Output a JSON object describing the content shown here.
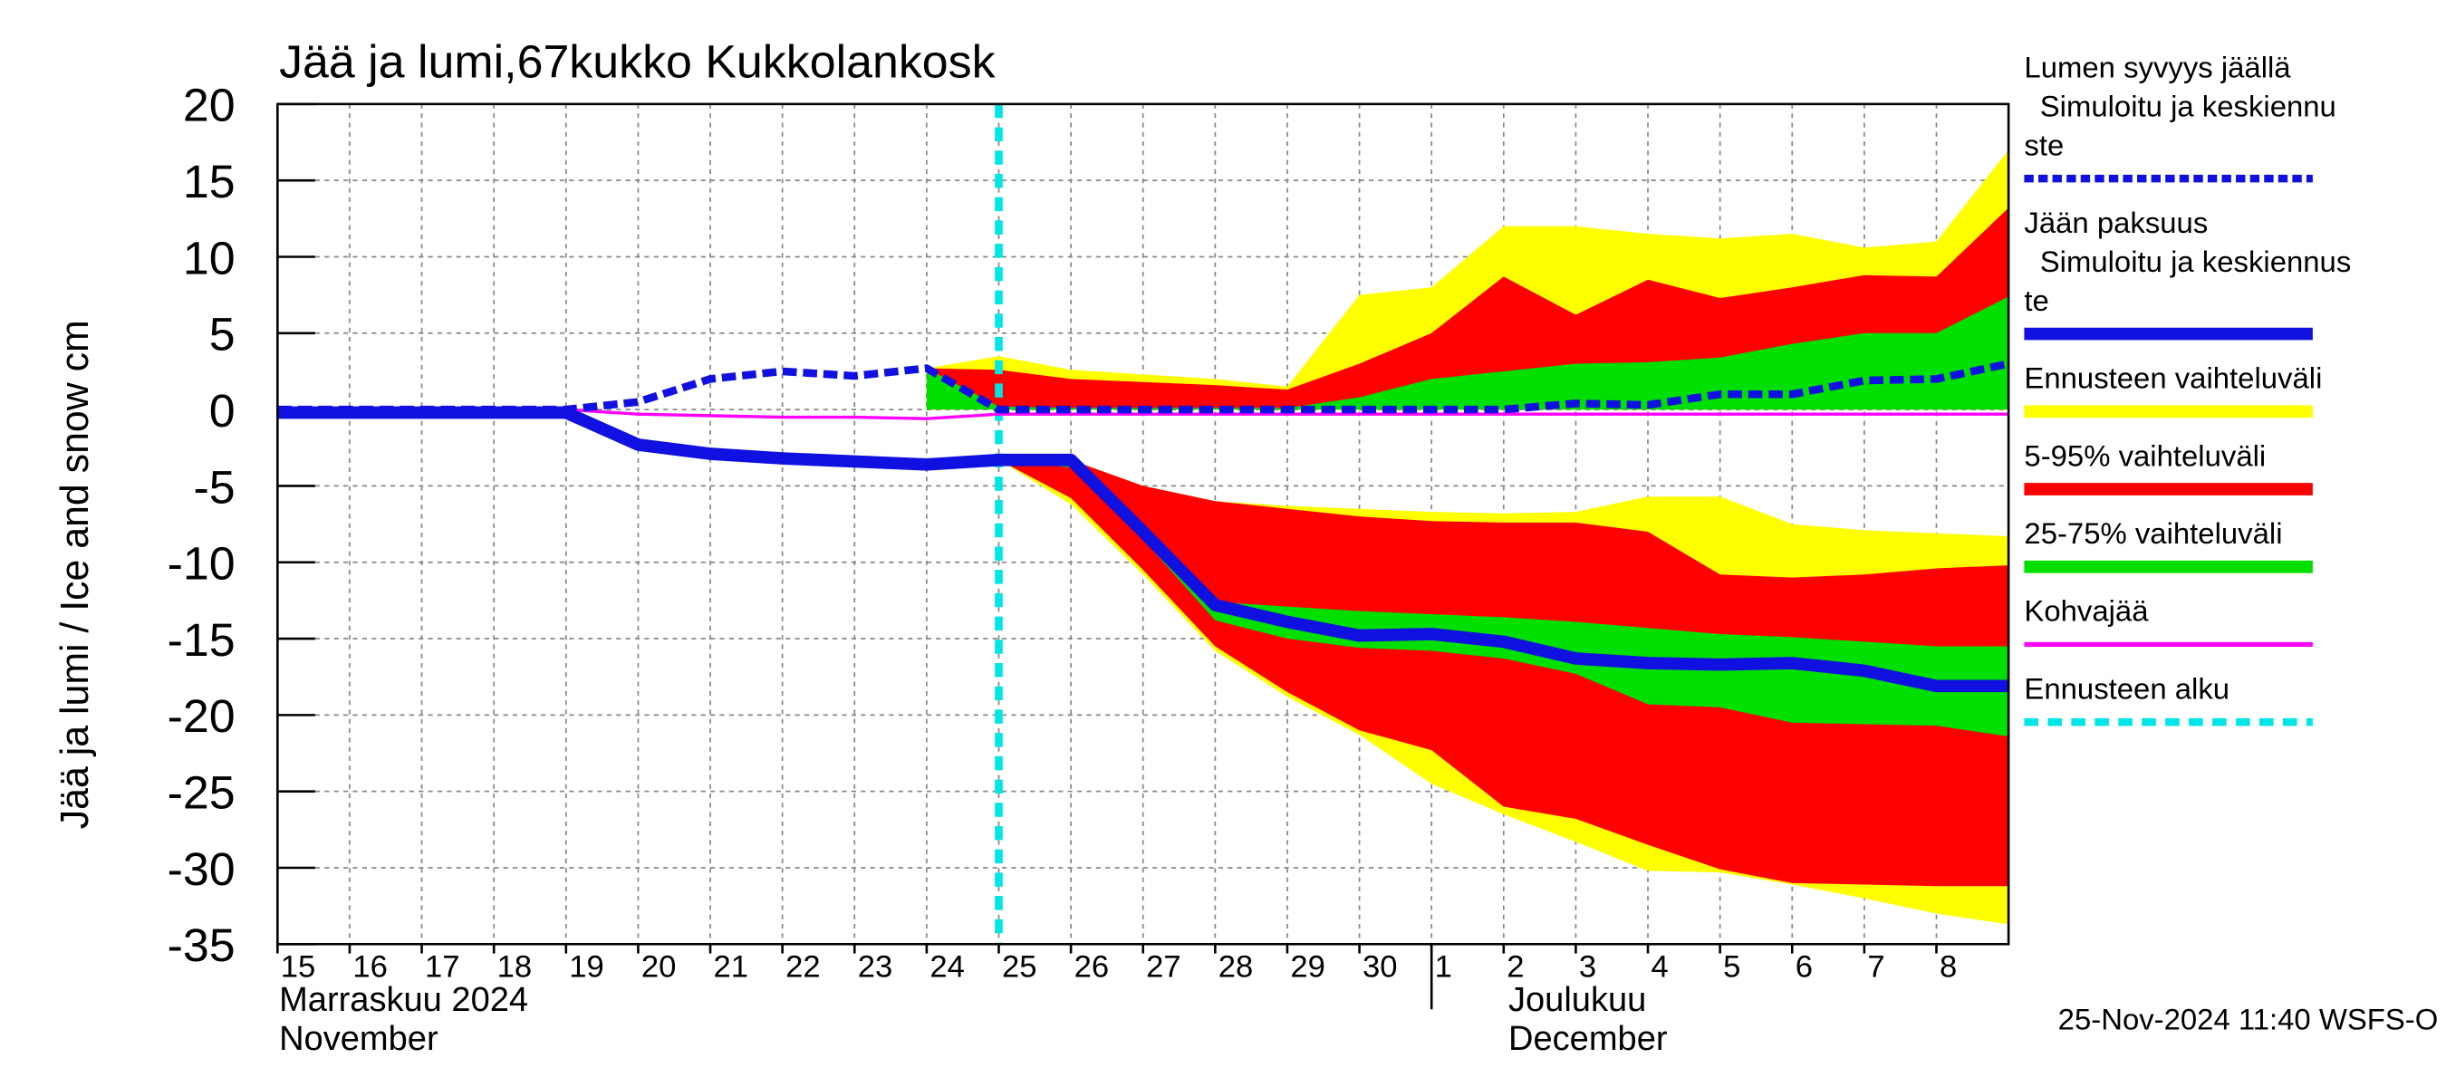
{
  "chart_data": {
    "type": "ice-forecast",
    "title": "Jää ja lumi,67kukko Kukkolankosk",
    "y_label": "Jää ja lumi / Ice and snow    cm",
    "footer": "25-Nov-2024 11:40 WSFS-O",
    "grid": true,
    "ylim": [
      -35,
      20
    ],
    "yticks": [
      20,
      15,
      10,
      5,
      0,
      -5,
      -10,
      -15,
      -20,
      -25,
      -30,
      -35
    ],
    "xlim": [
      "2024-11-15",
      "2024-12-09"
    ],
    "xticks": [
      {
        "value": "2024-11-15",
        "label": "15"
      },
      {
        "value": "2024-11-16",
        "label": "16"
      },
      {
        "value": "2024-11-17",
        "label": "17"
      },
      {
        "value": "2024-11-18",
        "label": "18"
      },
      {
        "value": "2024-11-19",
        "label": "19"
      },
      {
        "value": "2024-11-20",
        "label": "20"
      },
      {
        "value": "2024-11-21",
        "label": "21"
      },
      {
        "value": "2024-11-22",
        "label": "22"
      },
      {
        "value": "2024-11-23",
        "label": "23"
      },
      {
        "value": "2024-11-24",
        "label": "24"
      },
      {
        "value": "2024-11-25",
        "label": "25"
      },
      {
        "value": "2024-11-26",
        "label": "26"
      },
      {
        "value": "2024-11-27",
        "label": "27"
      },
      {
        "value": "2024-11-28",
        "label": "28"
      },
      {
        "value": "2024-11-29",
        "label": "29"
      },
      {
        "value": "2024-11-30",
        "label": "30"
      },
      {
        "value": "2024-12-01",
        "label": "1"
      },
      {
        "value": "2024-12-02",
        "label": "2"
      },
      {
        "value": "2024-12-03",
        "label": "3"
      },
      {
        "value": "2024-12-04",
        "label": "4"
      },
      {
        "value": "2024-12-05",
        "label": "5"
      },
      {
        "value": "2024-12-06",
        "label": "6"
      },
      {
        "value": "2024-12-07",
        "label": "7"
      },
      {
        "value": "2024-12-08",
        "label": "8"
      }
    ],
    "months": [
      {
        "date": "2024-11-15",
        "lines": [
          "Marraskuu 2024",
          "November"
        ]
      },
      {
        "date": "2024-12-01",
        "lines": [
          "Joulukuu",
          "December"
        ]
      }
    ],
    "x": [
      "2024-11-15",
      "2024-11-16",
      "2024-11-17",
      "2024-11-18",
      "2024-11-19",
      "2024-11-20",
      "2024-11-21",
      "2024-11-22",
      "2024-11-23",
      "2024-11-24",
      "2024-11-25",
      "2024-11-26",
      "2024-11-27",
      "2024-11-28",
      "2024-11-29",
      "2024-11-30",
      "2024-12-01",
      "2024-12-02",
      "2024-12-03",
      "2024-12-04",
      "2024-12-05",
      "2024-12-06",
      "2024-12-07",
      "2024-12-08",
      "2024-12-09"
    ],
    "series": [
      {
        "name": [
          "Lumen syvyys jäällä",
          "Simuloitu ja keskiennu",
          "ste"
        ],
        "kind": "line",
        "color": "#1010e0",
        "width": 5,
        "dashed": true,
        "values": [
          0,
          0,
          0,
          0,
          0,
          0.5,
          2,
          2.5,
          2.2,
          2.7,
          0,
          0,
          0,
          0,
          0,
          0,
          0,
          0,
          0.4,
          0.3,
          1,
          1,
          1.9,
          2,
          3
        ]
      },
      {
        "name": [
          "Jään paksuus",
          "Simuloitu ja keskiennus",
          "te"
        ],
        "kind": "line",
        "color": "#1010e0",
        "width": 8,
        "dashed": false,
        "values": [
          -0.2,
          -0.2,
          -0.2,
          -0.2,
          -0.2,
          -2.3,
          -2.9,
          -3.2,
          -3.4,
          -3.6,
          -3.3,
          -3.3,
          -8,
          -12.8,
          -13.9,
          -14.8,
          -14.7,
          -15.2,
          -16.3,
          -16.6,
          -16.7,
          -16.6,
          -17.1,
          -18.1,
          -18.1
        ]
      },
      {
        "name": [
          "Ennusteen vaihteluväli"
        ],
        "kind": "band",
        "color": "#ffff00",
        "snow_high": [
          null,
          null,
          null,
          null,
          null,
          null,
          null,
          null,
          null,
          2.7,
          3.5,
          2.6,
          2.3,
          2,
          1.5,
          7.5,
          8,
          12,
          12,
          11.5,
          11.2,
          11.5,
          10.6,
          11,
          17
        ],
        "snow_low": [
          null,
          null,
          null,
          null,
          null,
          null,
          null,
          null,
          null,
          0,
          0,
          0,
          0,
          0,
          0,
          0,
          0,
          0,
          0,
          0,
          0,
          0,
          0,
          0,
          0
        ],
        "ice_high": [
          null,
          null,
          null,
          null,
          null,
          null,
          null,
          null,
          null,
          -3.6,
          -3.3,
          -3.3,
          -5,
          -6,
          -6.3,
          -6.5,
          -6.7,
          -6.8,
          -6.7,
          -5.7,
          -5.7,
          -7.5,
          -7.9,
          -8.1,
          -8.3
        ],
        "ice_low": [
          null,
          null,
          null,
          null,
          null,
          null,
          null,
          null,
          null,
          -3.6,
          -3.3,
          -6.2,
          -10.8,
          -15.8,
          -18.8,
          -21.3,
          -24.5,
          -26.5,
          -28.3,
          -30.2,
          -30.3,
          -31.1,
          -32,
          -33,
          -33.7
        ]
      },
      {
        "name": [
          "5-95% vaihteluväli"
        ],
        "kind": "band",
        "color": "#ff0000",
        "snow_high": [
          null,
          null,
          null,
          null,
          null,
          null,
          null,
          null,
          null,
          2.7,
          2.6,
          2,
          1.8,
          1.6,
          1.3,
          3,
          5,
          8.7,
          6.2,
          8.5,
          7.3,
          8,
          8.8,
          8.7,
          13.2
        ],
        "snow_low": [
          null,
          null,
          null,
          null,
          null,
          null,
          null,
          null,
          null,
          0,
          0,
          0,
          0,
          0,
          0,
          0,
          0,
          0,
          0,
          0,
          0,
          0,
          0,
          0,
          0
        ],
        "ice_high": [
          null,
          null,
          null,
          null,
          null,
          null,
          null,
          null,
          null,
          -3.6,
          -3.3,
          -3.3,
          -5,
          -6,
          -6.5,
          -7,
          -7.3,
          -7.4,
          -7.4,
          -8,
          -10.8,
          -11,
          -10.8,
          -10.4,
          -10.2
        ],
        "ice_low": [
          null,
          null,
          null,
          null,
          null,
          null,
          null,
          null,
          null,
          -3.6,
          -3.3,
          -5.8,
          -10.5,
          -15.5,
          -18.5,
          -21,
          -22.3,
          -26,
          -26.8,
          -28.5,
          -30.1,
          -31,
          -31.1,
          -31.2,
          -31.2
        ]
      },
      {
        "name": [
          "25-75% vaihteluväli"
        ],
        "kind": "band",
        "color": "#00e000",
        "snow_high": [
          null,
          null,
          null,
          null,
          null,
          null,
          null,
          null,
          null,
          2.7,
          0.2,
          0.1,
          0.1,
          0.1,
          0.1,
          0.8,
          2,
          2.5,
          3,
          3.1,
          3.4,
          4.3,
          5,
          5,
          7.4
        ],
        "snow_low": [
          null,
          null,
          null,
          null,
          null,
          null,
          null,
          null,
          null,
          0,
          0,
          0,
          0,
          0,
          0,
          0,
          0,
          0,
          0,
          0,
          0,
          0,
          0,
          0,
          0
        ],
        "ice_high": [
          null,
          null,
          null,
          null,
          null,
          null,
          null,
          null,
          null,
          -3.6,
          -3.3,
          -3.3,
          -8,
          -12.6,
          -12.9,
          -13.2,
          -13.4,
          -13.6,
          -13.9,
          -14.3,
          -14.7,
          -14.9,
          -15.2,
          -15.5,
          -15.5
        ],
        "ice_low": [
          null,
          null,
          null,
          null,
          null,
          null,
          null,
          null,
          null,
          -3.6,
          -3.3,
          -3.8,
          -8.5,
          -13.8,
          -15,
          -15.6,
          -15.8,
          -16.3,
          -17.3,
          -19.3,
          -19.5,
          -20.5,
          -20.6,
          -20.7,
          -21.4
        ]
      },
      {
        "name": [
          "Kohvajää"
        ],
        "kind": "line",
        "color": "#ff00ff",
        "width": 2,
        "dashed": false,
        "values": [
          0,
          0,
          0,
          0,
          0,
          -0.3,
          -0.4,
          -0.5,
          -0.5,
          -0.6,
          -0.3,
          -0.3,
          -0.3,
          -0.3,
          -0.3,
          -0.3,
          -0.3,
          -0.3,
          -0.3,
          -0.3,
          -0.3,
          -0.3,
          -0.3,
          -0.3,
          -0.3
        ]
      },
      {
        "name": [
          "Ennusteen alku"
        ],
        "kind": "vline",
        "color": "#00e5e5",
        "date": "2024-11-25"
      }
    ]
  }
}
